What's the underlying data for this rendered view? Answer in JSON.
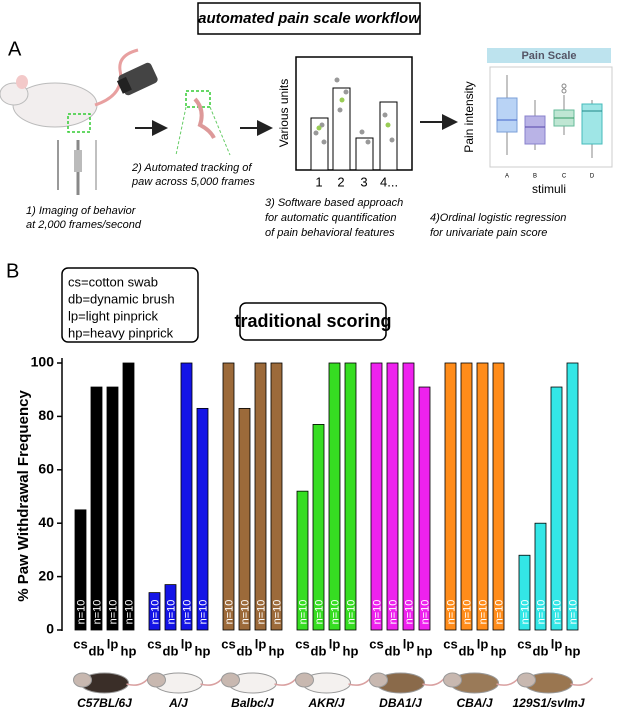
{
  "header": {
    "title": "automated pain scale workflow"
  },
  "panel_a": {
    "label": "A",
    "steps": [
      {
        "lines": [
          "1) Imaging of behavior",
          "at 2,000 frames/second"
        ]
      },
      {
        "lines": [
          "2) Automated tracking of",
          "paw across 5,000 frames"
        ]
      },
      {
        "lines": [
          "3) Software based approach",
          "for automatic quantification",
          "of pain behavioral features"
        ]
      },
      {
        "lines": [
          "4)Ordinal logistic regression",
          "for univariate pain score"
        ]
      }
    ],
    "software_plot": {
      "y_label": "Various units",
      "x_labels": [
        "1",
        "2",
        "3",
        "4..."
      ]
    },
    "pain_scale_plot": {
      "title": "Pain Scale",
      "y_label": "Pain intensity",
      "x_label": "stimuli",
      "x_labels": [
        "A",
        "B",
        "C",
        "D"
      ]
    }
  },
  "panel_b": {
    "label": "B",
    "legend": [
      "cs=cotton swab",
      "db=dynamic brush",
      "lp=light pinprick",
      "hp=heavy pinprick"
    ]
  },
  "chart_data": {
    "type": "grouped_bar",
    "title": "traditional scoring",
    "y_label": "% Paw Withdrawal Frequency",
    "categories": [
      "cs",
      "db",
      "lp",
      "hp"
    ],
    "bar_annotation": "n=10",
    "series": [
      {
        "name": "C57BL/6J",
        "color": "#000000",
        "values": [
          45,
          91,
          91,
          100
        ]
      },
      {
        "name": "A/J",
        "color": "#1414e6",
        "values": [
          14,
          17,
          100,
          83
        ]
      },
      {
        "name": "Balbc/J",
        "color": "#9c6a3a",
        "values": [
          100,
          83,
          100,
          100
        ]
      },
      {
        "name": "AKR/J",
        "color": "#36dd22",
        "values": [
          52,
          77,
          100,
          100
        ]
      },
      {
        "name": "DBA1/J",
        "color": "#ee22ee",
        "values": [
          100,
          100,
          100,
          91
        ]
      },
      {
        "name": "CBA/J",
        "color": "#ff8c1a",
        "values": [
          100,
          100,
          100,
          100
        ]
      },
      {
        "name": "129S1/svImJ",
        "color": "#33e6e6",
        "values": [
          28,
          40,
          91,
          100
        ]
      }
    ],
    "ylim": [
      0,
      100
    ],
    "yticks": [
      0,
      20,
      40,
      60,
      80,
      100
    ]
  }
}
